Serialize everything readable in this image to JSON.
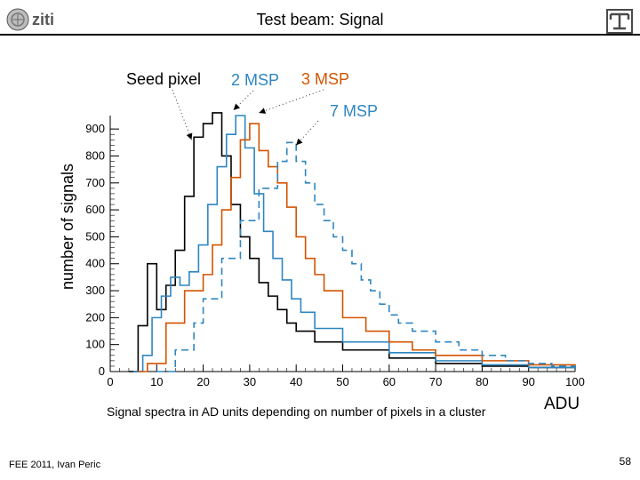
{
  "slide": {
    "title": "Test beam: Signal",
    "footer_left": "FEE 2011, Ivan Peric",
    "page_number": "58",
    "caption": "Signal spectra in AD units depending on number of pixels in a cluster",
    "adu_label": "ADU",
    "logo_text": "ziti"
  },
  "chart_data": {
    "type": "line",
    "ylabel": "number of signals",
    "xlim": [
      0,
      100
    ],
    "ylim": [
      0,
      950
    ],
    "x_ticks": [
      0,
      10,
      20,
      30,
      40,
      50,
      60,
      70,
      80,
      90,
      100
    ],
    "y_ticks": [
      0,
      100,
      200,
      300,
      400,
      500,
      600,
      700,
      800,
      900
    ],
    "annotations": [
      {
        "text": "Seed pixel",
        "color": "#000000",
        "target_x": 17.5,
        "target_y": 860
      },
      {
        "text": "2 MSP",
        "color": "#2e86c1",
        "target_x": 26.5,
        "target_y": 970
      },
      {
        "text": "3 MSP",
        "color": "#d35400",
        "target_x": 32,
        "target_y": 960
      },
      {
        "text": "7 MSP",
        "color": "#2e86c1",
        "target_x": 40,
        "target_y": 840
      }
    ],
    "series": [
      {
        "name": "Seed pixel",
        "color": "#000000",
        "style": "solid",
        "points": [
          [
            4,
            0
          ],
          [
            6,
            170
          ],
          [
            8,
            400
          ],
          [
            10,
            230
          ],
          [
            12,
            320
          ],
          [
            14,
            450
          ],
          [
            16,
            650
          ],
          [
            18,
            870
          ],
          [
            20,
            920
          ],
          [
            22,
            960
          ],
          [
            24,
            800
          ],
          [
            26,
            620
          ],
          [
            28,
            500
          ],
          [
            30,
            420
          ],
          [
            32,
            330
          ],
          [
            34,
            280
          ],
          [
            36,
            230
          ],
          [
            38,
            180
          ],
          [
            40,
            150
          ],
          [
            44,
            110
          ],
          [
            50,
            80
          ],
          [
            60,
            50
          ],
          [
            70,
            30
          ],
          [
            80,
            20
          ],
          [
            90,
            15
          ],
          [
            100,
            10
          ]
        ]
      },
      {
        "name": "2 MSP",
        "color": "#2e86c1",
        "style": "solid",
        "points": [
          [
            5,
            0
          ],
          [
            7,
            60
          ],
          [
            9,
            200
          ],
          [
            11,
            280
          ],
          [
            13,
            350
          ],
          [
            15,
            320
          ],
          [
            17,
            370
          ],
          [
            19,
            470
          ],
          [
            21,
            620
          ],
          [
            23,
            760
          ],
          [
            25,
            880
          ],
          [
            27,
            950
          ],
          [
            29,
            830
          ],
          [
            31,
            660
          ],
          [
            33,
            520
          ],
          [
            35,
            420
          ],
          [
            37,
            340
          ],
          [
            39,
            270
          ],
          [
            41,
            220
          ],
          [
            44,
            160
          ],
          [
            50,
            110
          ],
          [
            60,
            70
          ],
          [
            70,
            40
          ],
          [
            80,
            25
          ],
          [
            90,
            15
          ],
          [
            100,
            10
          ]
        ]
      },
      {
        "name": "3 MSP",
        "color": "#d35400",
        "style": "solid",
        "points": [
          [
            6,
            0
          ],
          [
            8,
            30
          ],
          [
            12,
            180
          ],
          [
            16,
            300
          ],
          [
            20,
            360
          ],
          [
            22,
            470
          ],
          [
            24,
            600
          ],
          [
            26,
            720
          ],
          [
            28,
            860
          ],
          [
            30,
            920
          ],
          [
            32,
            820
          ],
          [
            34,
            760
          ],
          [
            36,
            700
          ],
          [
            38,
            610
          ],
          [
            40,
            500
          ],
          [
            42,
            420
          ],
          [
            44,
            360
          ],
          [
            46,
            300
          ],
          [
            50,
            200
          ],
          [
            55,
            150
          ],
          [
            60,
            110
          ],
          [
            65,
            80
          ],
          [
            70,
            60
          ],
          [
            80,
            40
          ],
          [
            90,
            25
          ],
          [
            100,
            15
          ]
        ]
      },
      {
        "name": "7 MSP",
        "color": "#2e86c1",
        "style": "dashed",
        "points": [
          [
            10,
            0
          ],
          [
            14,
            80
          ],
          [
            18,
            180
          ],
          [
            20,
            270
          ],
          [
            24,
            420
          ],
          [
            28,
            560
          ],
          [
            32,
            680
          ],
          [
            36,
            780
          ],
          [
            38,
            850
          ],
          [
            40,
            780
          ],
          [
            42,
            700
          ],
          [
            44,
            620
          ],
          [
            46,
            560
          ],
          [
            48,
            500
          ],
          [
            50,
            450
          ],
          [
            52,
            400
          ],
          [
            54,
            340
          ],
          [
            56,
            300
          ],
          [
            58,
            250
          ],
          [
            60,
            210
          ],
          [
            62,
            180
          ],
          [
            65,
            150
          ],
          [
            70,
            110
          ],
          [
            75,
            80
          ],
          [
            80,
            60
          ],
          [
            85,
            40
          ],
          [
            90,
            30
          ],
          [
            95,
            20
          ],
          [
            100,
            15
          ]
        ]
      }
    ]
  }
}
